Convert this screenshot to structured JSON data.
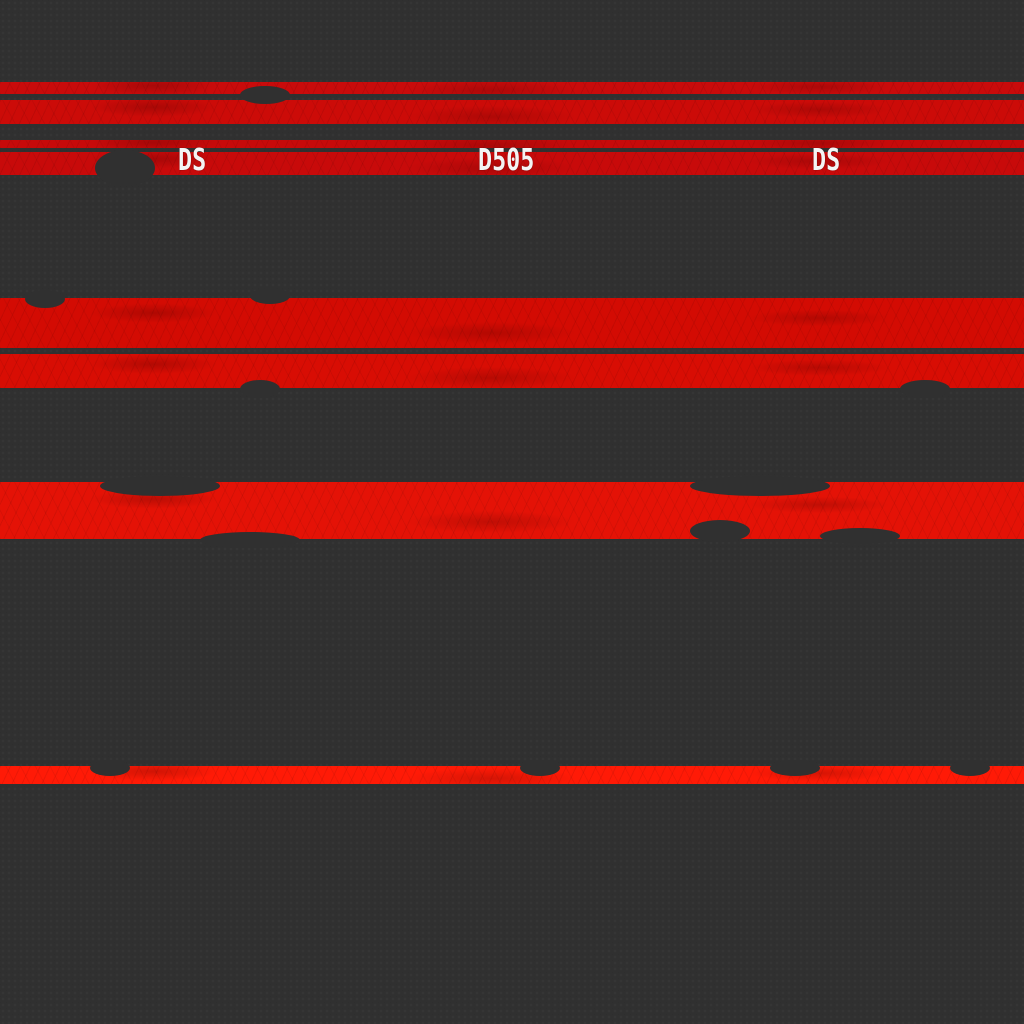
{
  "labels": {
    "left": "DS",
    "center": "D505",
    "right": "DS"
  },
  "colors": {
    "base": "#303030",
    "red_dark": "#c80a0a",
    "red_mid": "#d40c04",
    "red_bright": "#e41206",
    "red_vivid": "#ff1a06",
    "label": "#f4f4f4"
  }
}
